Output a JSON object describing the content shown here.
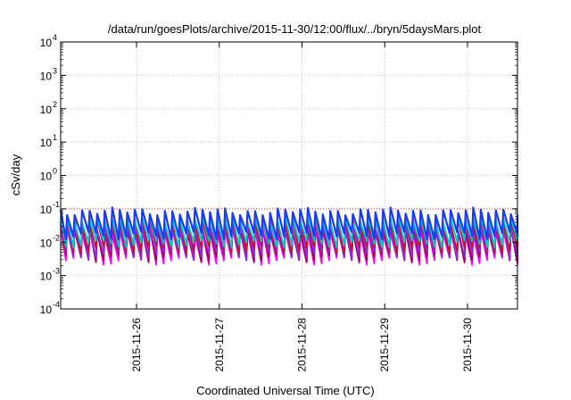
{
  "chart_data": {
    "type": "line",
    "title": "/data/run/goesPlots/archive/2015-11-30/12:00/flux/../bryn/5daysMars.plot",
    "xlabel": "Coordinated Universal Time (UTC)",
    "ylabel": "cSv/day",
    "yscale": "log",
    "ylim": [
      0.0001,
      10000
    ],
    "xlim": [
      "2015-11-25 02:00",
      "2015-11-30 14:30"
    ],
    "y_ticks": [
      {
        "base": "10",
        "exp": "-4",
        "value": 0.0001
      },
      {
        "base": "10",
        "exp": "-3",
        "value": 0.001
      },
      {
        "base": "10",
        "exp": "-2",
        "value": 0.01
      },
      {
        "base": "10",
        "exp": "-1",
        "value": 0.1
      },
      {
        "base": "10",
        "exp": "0",
        "value": 1
      },
      {
        "base": "10",
        "exp": "1",
        "value": 10
      },
      {
        "base": "10",
        "exp": "2",
        "value": 100
      },
      {
        "base": "10",
        "exp": "3",
        "value": 1000
      },
      {
        "base": "10",
        "exp": "4",
        "value": 10000
      }
    ],
    "x_ticks": [
      "2015-11-26",
      "2015-11-27",
      "2015-11-28",
      "2015-11-29",
      "2015-11-30"
    ],
    "grid": true,
    "legend": "none",
    "threshold": {
      "value": 0.1,
      "color": "#ff2020",
      "style": "dotted"
    },
    "pattern": {
      "shape": "sawtooth",
      "cycles_per_day": 11,
      "peak_range": [
        0.05,
        0.11
      ],
      "trough_range": [
        0.003,
        0.02
      ]
    },
    "series": [
      {
        "color": "#ff00ff",
        "peak": 0.022,
        "trough": 0.0028
      },
      {
        "color": "#a0004a",
        "peak": 0.026,
        "trough": 0.0034
      },
      {
        "color": "#8a2be2",
        "peak": 0.03,
        "trough": 0.0042
      },
      {
        "color": "#c8102e",
        "peak": 0.045,
        "trough": 0.006
      },
      {
        "color": "#00c8c8",
        "peak": 0.05,
        "trough": 0.009
      },
      {
        "color": "#1a3aff",
        "peak": 0.085,
        "trough": 0.016
      }
    ]
  }
}
